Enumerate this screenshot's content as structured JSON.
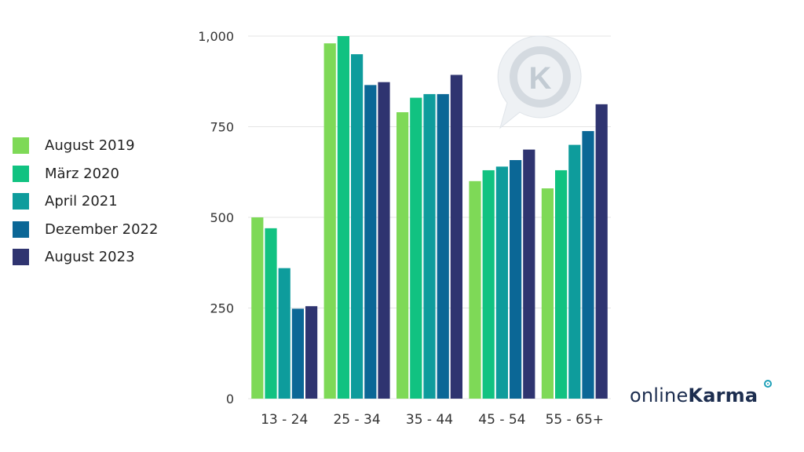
{
  "chart_data": {
    "type": "bar",
    "categories": [
      "13 - 24",
      "25 - 34",
      "35 - 44",
      "45 - 54",
      "55 - 65+"
    ],
    "series": [
      {
        "name": "August 2019",
        "color": "#7ed957",
        "values": [
          500,
          980,
          790,
          600,
          580
        ]
      },
      {
        "name": "März 2020",
        "color": "#11c281",
        "values": [
          470,
          1000,
          830,
          630,
          630
        ]
      },
      {
        "name": "April 2021",
        "color": "#0e9c9c",
        "values": [
          360,
          950,
          840,
          640,
          700
        ]
      },
      {
        "name": "Dezember 2022",
        "color": "#0b6796",
        "values": [
          248,
          865,
          840,
          658,
          738
        ]
      },
      {
        "name": "August 2023",
        "color": "#2f3470",
        "values": [
          255,
          873,
          893,
          687,
          812
        ]
      }
    ],
    "yticks": [
      0,
      250,
      500,
      750,
      1000
    ],
    "ytick_labels": [
      "0",
      "250",
      "500",
      "750",
      "1,000"
    ],
    "ylim": [
      0,
      1000
    ],
    "grid": true,
    "legend_position": "left"
  },
  "brand": {
    "part_a": "online",
    "part_b": "Karma",
    "watermark_icon": "speech-bubble-k-icon",
    "watermark_letter": "K"
  }
}
